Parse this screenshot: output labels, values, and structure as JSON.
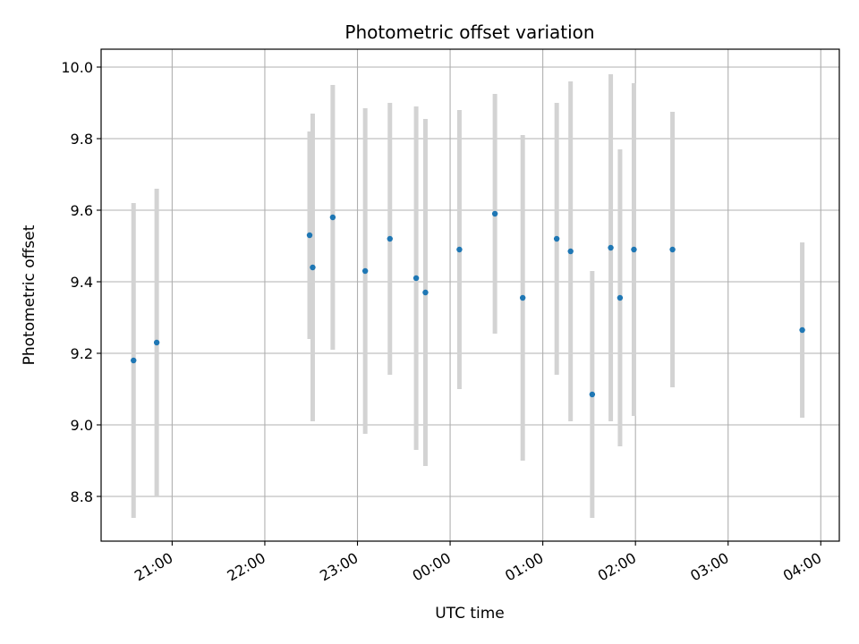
{
  "chart_data": {
    "type": "scatter",
    "title": "Photometric offset variation",
    "xlabel": "UTC time",
    "ylabel": "Photometric offset",
    "x_ticks": [
      "21:00",
      "22:00",
      "23:00",
      "00:00",
      "01:00",
      "02:00",
      "03:00",
      "04:00"
    ],
    "x_tick_hours": [
      21,
      22,
      23,
      24,
      25,
      26,
      27,
      28
    ],
    "y_ticks": [
      "8.8",
      "9.0",
      "9.2",
      "9.4",
      "9.6",
      "9.8",
      "10.0"
    ],
    "y_tick_values": [
      8.8,
      9.0,
      9.2,
      9.4,
      9.6,
      9.8,
      10.0
    ],
    "xlim": [
      "20:14",
      "04:12"
    ],
    "ylim": [
      8.675,
      10.05
    ],
    "grid": true,
    "colors": {
      "point": "#1f77b4",
      "error_bar": "#d3d3d3",
      "grid": "#b0b0b0"
    },
    "points": [
      {
        "x": "20:35",
        "y": 9.18,
        "err": 0.44
      },
      {
        "x": "20:50",
        "y": 9.23,
        "err": 0.43
      },
      {
        "x": "22:29",
        "y": 9.53,
        "err": 0.29
      },
      {
        "x": "22:31",
        "y": 9.44,
        "err": 0.43
      },
      {
        "x": "22:44",
        "y": 9.58,
        "err": 0.37
      },
      {
        "x": "23:05",
        "y": 9.43,
        "err": 0.455
      },
      {
        "x": "23:21",
        "y": 9.52,
        "err": 0.38
      },
      {
        "x": "23:38",
        "y": 9.41,
        "err": 0.48
      },
      {
        "x": "23:44",
        "y": 9.37,
        "err": 0.485
      },
      {
        "x": "00:06",
        "y": 9.49,
        "err": 0.39
      },
      {
        "x": "00:29",
        "y": 9.59,
        "err": 0.335
      },
      {
        "x": "00:47",
        "y": 9.355,
        "err": 0.455
      },
      {
        "x": "01:09",
        "y": 9.52,
        "err": 0.38
      },
      {
        "x": "01:18",
        "y": 9.485,
        "err": 0.475
      },
      {
        "x": "01:32",
        "y": 9.085,
        "err": 0.345
      },
      {
        "x": "01:44",
        "y": 9.495,
        "err": 0.485
      },
      {
        "x": "01:50",
        "y": 9.355,
        "err": 0.415
      },
      {
        "x": "01:59",
        "y": 9.49,
        "err": 0.465
      },
      {
        "x": "02:24",
        "y": 9.49,
        "err": 0.385
      },
      {
        "x": "03:48",
        "y": 9.265,
        "err": 0.245
      }
    ]
  }
}
